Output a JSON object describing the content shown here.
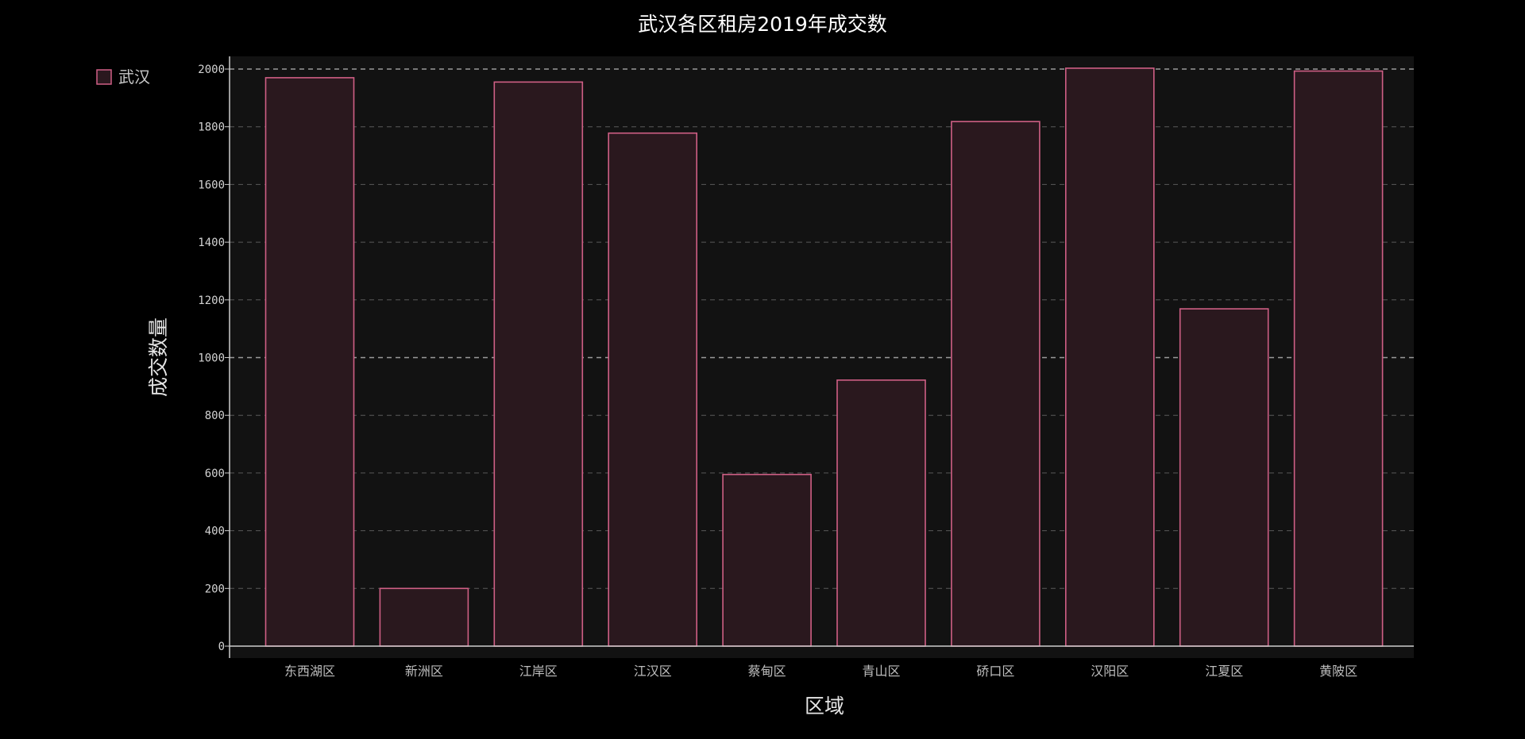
{
  "chart_data": {
    "type": "bar",
    "title": "武汉各区租房2019年成交数",
    "xlabel": "区域",
    "ylabel": "成交数量",
    "categories": [
      "东西湖区",
      "新洲区",
      "江岸区",
      "江汉区",
      "蔡甸区",
      "青山区",
      "硚口区",
      "汉阳区",
      "江夏区",
      "黄陂区"
    ],
    "series": [
      {
        "name": "武汉",
        "values": [
          1970,
          200,
          1955,
          1778,
          595,
          922,
          1818,
          2003,
          1169,
          1993
        ]
      }
    ],
    "ylim": [
      0,
      2000
    ],
    "yticks": [
      0,
      200,
      400,
      600,
      800,
      1000,
      1200,
      1400,
      1600,
      1800,
      2000
    ],
    "grid": true,
    "legend_position": "top-left"
  },
  "colors": {
    "page_background": "#000000",
    "plot_background": "#121212",
    "bar_fill": "#2a181e",
    "bar_stroke": "#cf5f85",
    "grid": "#5a5a5a",
    "grid_major": "#9a9a9a",
    "axis": "#cccccc"
  }
}
